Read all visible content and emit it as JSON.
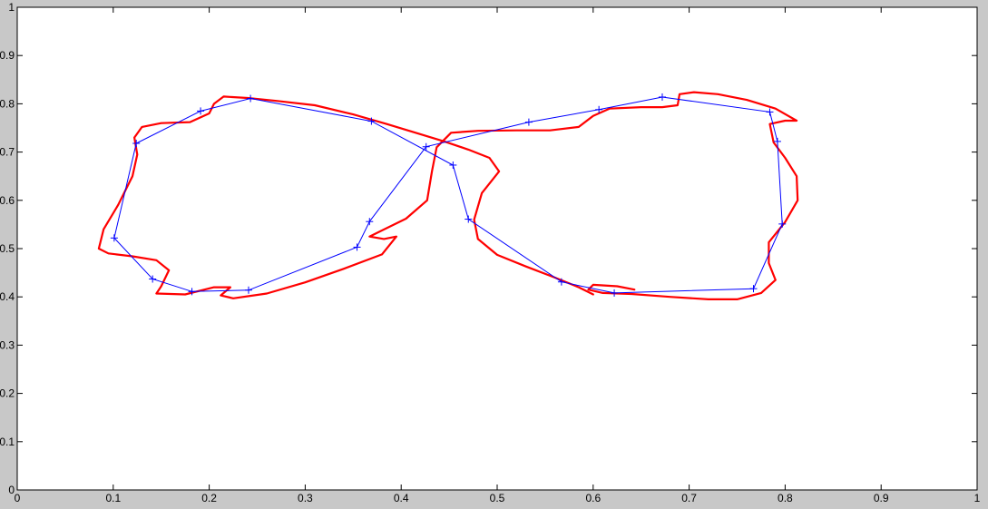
{
  "chart_data": {
    "type": "line",
    "title": "",
    "xlabel": "",
    "ylabel": "",
    "xlim": [
      0,
      1
    ],
    "ylim": [
      0,
      1
    ],
    "xticks": [
      "0",
      "0.1",
      "0.2",
      "0.3",
      "0.4",
      "0.5",
      "0.6",
      "0.7",
      "0.8",
      "0.9",
      "1"
    ],
    "yticks": [
      "0",
      "0.1",
      "0.2",
      "0.3",
      "0.4",
      "0.5",
      "0.6",
      "0.7",
      "0.8",
      "0.9",
      "1"
    ],
    "grid": false,
    "legend": "none",
    "colors": {
      "control": "#0000ff",
      "curve": "#ff0000",
      "axes_bg": "#ffffff",
      "figure_bg": "#c8c8c8"
    },
    "series": [
      {
        "style": "blue-line-plus-markers",
        "loops": [
          [
            [
              0.101,
              0.522
            ],
            [
              0.124,
              0.718
            ],
            [
              0.191,
              0.785
            ],
            [
              0.243,
              0.811
            ],
            [
              0.369,
              0.764
            ],
            [
              0.454,
              0.673
            ],
            [
              0.47,
              0.561
            ],
            [
              0.567,
              0.431
            ],
            [
              0.622,
              0.408
            ],
            [
              0.767,
              0.417
            ],
            [
              0.797,
              0.551
            ],
            [
              0.792,
              0.722
            ],
            [
              0.784,
              0.783
            ],
            [
              0.672,
              0.814
            ],
            [
              0.606,
              0.788
            ],
            [
              0.533,
              0.762
            ],
            [
              0.426,
              0.711
            ],
            [
              0.367,
              0.556
            ],
            [
              0.354,
              0.503
            ],
            [
              0.241,
              0.414
            ],
            [
              0.182,
              0.411
            ],
            [
              0.141,
              0.437
            ],
            [
              0.101,
              0.522
            ]
          ]
        ]
      },
      {
        "style": "red-smooth-curve",
        "loops": [
          [
            [
              0.6,
              0.405
            ],
            [
              0.585,
              0.42
            ],
            [
              0.56,
              0.44
            ],
            [
              0.53,
              0.463
            ],
            [
              0.5,
              0.487
            ],
            [
              0.48,
              0.52
            ],
            [
              0.476,
              0.56
            ],
            [
              0.484,
              0.615
            ],
            [
              0.502,
              0.66
            ],
            [
              0.492,
              0.688
            ],
            [
              0.47,
              0.705
            ],
            [
              0.445,
              0.722
            ],
            [
              0.415,
              0.74
            ],
            [
              0.385,
              0.758
            ],
            [
              0.35,
              0.778
            ],
            [
              0.31,
              0.797
            ],
            [
              0.27,
              0.806
            ],
            [
              0.24,
              0.812
            ],
            [
              0.215,
              0.815
            ],
            [
              0.205,
              0.8
            ],
            [
              0.2,
              0.78
            ],
            [
              0.18,
              0.762
            ],
            [
              0.15,
              0.76
            ],
            [
              0.13,
              0.752
            ],
            [
              0.122,
              0.73
            ],
            [
              0.125,
              0.695
            ],
            [
              0.12,
              0.65
            ],
            [
              0.105,
              0.59
            ],
            [
              0.09,
              0.54
            ],
            [
              0.085,
              0.5
            ],
            [
              0.095,
              0.49
            ],
            [
              0.12,
              0.484
            ],
            [
              0.145,
              0.476
            ],
            [
              0.158,
              0.455
            ],
            [
              0.15,
              0.422
            ],
            [
              0.145,
              0.407
            ],
            [
              0.175,
              0.405
            ],
            [
              0.205,
              0.42
            ],
            [
              0.222,
              0.42
            ],
            [
              0.212,
              0.403
            ],
            [
              0.225,
              0.397
            ],
            [
              0.26,
              0.407
            ],
            [
              0.3,
              0.43
            ],
            [
              0.34,
              0.458
            ],
            [
              0.38,
              0.488
            ],
            [
              0.395,
              0.525
            ],
            [
              0.382,
              0.52
            ],
            [
              0.367,
              0.525
            ],
            [
              0.405,
              0.562
            ],
            [
              0.427,
              0.6
            ],
            [
              0.432,
              0.66
            ],
            [
              0.437,
              0.71
            ],
            [
              0.452,
              0.74
            ],
            [
              0.48,
              0.744
            ],
            [
              0.52,
              0.745
            ],
            [
              0.555,
              0.745
            ],
            [
              0.585,
              0.752
            ],
            [
              0.6,
              0.775
            ],
            [
              0.617,
              0.79
            ],
            [
              0.65,
              0.793
            ],
            [
              0.672,
              0.793
            ],
            [
              0.688,
              0.797
            ],
            [
              0.69,
              0.82
            ],
            [
              0.705,
              0.824
            ],
            [
              0.73,
              0.82
            ],
            [
              0.76,
              0.808
            ],
            [
              0.79,
              0.79
            ],
            [
              0.812,
              0.765
            ],
            [
              0.8,
              0.765
            ],
            [
              0.784,
              0.758
            ],
            [
              0.788,
              0.72
            ],
            [
              0.8,
              0.688
            ],
            [
              0.812,
              0.65
            ],
            [
              0.813,
              0.6
            ],
            [
              0.8,
              0.555
            ],
            [
              0.783,
              0.513
            ],
            [
              0.783,
              0.47
            ],
            [
              0.79,
              0.435
            ],
            [
              0.775,
              0.408
            ],
            [
              0.75,
              0.395
            ],
            [
              0.72,
              0.395
            ],
            [
              0.68,
              0.4
            ],
            [
              0.64,
              0.406
            ],
            [
              0.61,
              0.408
            ],
            [
              0.595,
              0.415
            ],
            [
              0.6,
              0.425
            ],
            [
              0.625,
              0.422
            ],
            [
              0.643,
              0.415
            ]
          ]
        ]
      }
    ]
  }
}
